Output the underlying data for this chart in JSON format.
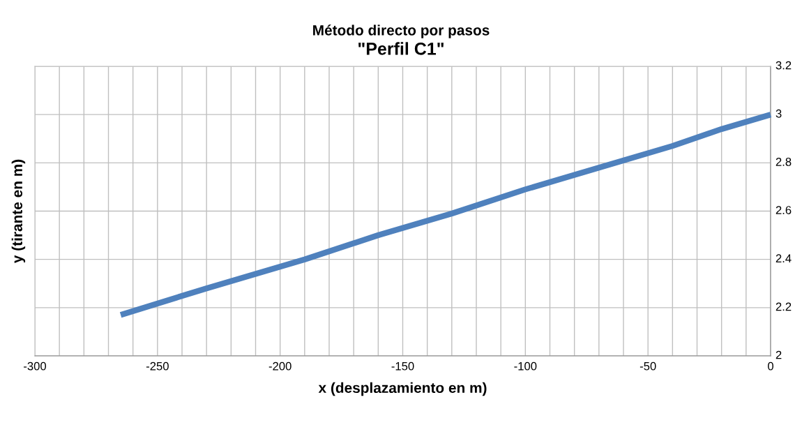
{
  "chart_data": {
    "type": "line",
    "title": "Método directo por pasos",
    "subtitle": "\"Perfil C1\"",
    "xlabel": "x (desplazamiento en m)",
    "ylabel": "y (tirante en m)",
    "x": [
      -265,
      -230,
      -190,
      -160,
      -130,
      -100,
      -70,
      -40,
      -20,
      0
    ],
    "series": [
      {
        "color": "#4f81bd",
        "values": [
          2.17,
          2.28,
          2.4,
          2.5,
          2.59,
          2.69,
          2.78,
          2.87,
          2.94,
          3.0
        ]
      }
    ],
    "xlim": [
      -300,
      0
    ],
    "ylim": [
      2,
      3.2
    ],
    "xticks": [
      -300,
      {
        "value": -290,
        "label": null
      },
      {
        "value": -280,
        "label": null
      },
      {
        "value": -270,
        "label": null
      },
      {
        "value": -260,
        "label": null
      },
      -250,
      {
        "value": -240,
        "label": null
      },
      {
        "value": -230,
        "label": null
      },
      {
        "value": -220,
        "label": null
      },
      {
        "value": -210,
        "label": null
      },
      -200,
      {
        "value": -190,
        "label": null
      },
      {
        "value": -180,
        "label": null
      },
      {
        "value": -170,
        "label": null
      },
      {
        "value": -160,
        "label": null
      },
      -150,
      {
        "value": -140,
        "label": null
      },
      {
        "value": -130,
        "label": null
      },
      {
        "value": -120,
        "label": null
      },
      {
        "value": -110,
        "label": null
      },
      -100,
      {
        "value": -90,
        "label": null
      },
      {
        "value": -80,
        "label": null
      },
      {
        "value": -70,
        "label": null
      },
      {
        "value": -60,
        "label": null
      },
      -50,
      {
        "value": -40,
        "label": null
      },
      {
        "value": -30,
        "label": null
      },
      {
        "value": -20,
        "label": null
      },
      {
        "value": -10,
        "label": null
      },
      0
    ],
    "yticks": [
      2,
      2.2,
      2.4,
      2.6,
      2.8,
      3,
      3.2
    ],
    "grid": true,
    "legend": false,
    "marker": "none",
    "line_style": "solid"
  }
}
